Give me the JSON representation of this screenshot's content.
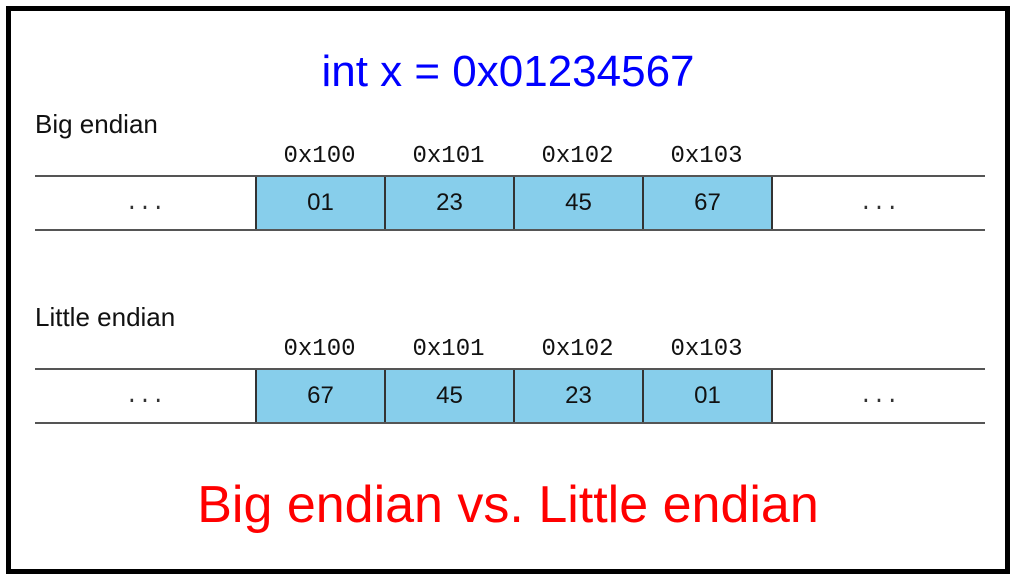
{
  "title": "int x = 0x01234567",
  "colors": {
    "title": "#0000ff",
    "footer": "#ff0000",
    "cell_fill": "#87ceeb"
  },
  "addresses": [
    "0x100",
    "0x101",
    "0x102",
    "0x103"
  ],
  "ellipsis": "...",
  "big_endian": {
    "label": "Big endian",
    "bytes": [
      "01",
      "23",
      "45",
      "67"
    ]
  },
  "little_endian": {
    "label": "Little endian",
    "bytes": [
      "67",
      "45",
      "23",
      "01"
    ]
  },
  "footer": "Big endian vs. Little endian"
}
